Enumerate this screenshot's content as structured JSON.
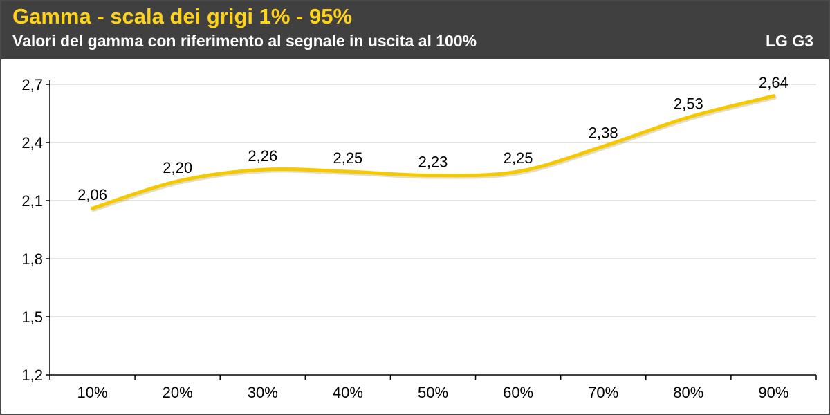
{
  "header": {
    "title": "Gamma - scala dei grigi 1% - 95%",
    "subtitle": "Valori del gamma con riferimento al segnale in uscita al 100%",
    "device": "LG G3"
  },
  "colors": {
    "header_bg": "#404040",
    "title": "#ffd21a",
    "line": "#f5c800",
    "grid": "#c8c8c8"
  },
  "chart_data": {
    "type": "line",
    "title": "Gamma - scala dei grigi 1% - 95%",
    "subtitle": "Valori del gamma con riferimento al segnale in uscita al 100%",
    "categories": [
      "10%",
      "20%",
      "30%",
      "40%",
      "50%",
      "60%",
      "70%",
      "80%",
      "90%"
    ],
    "series": [
      {
        "name": "LG G3",
        "values": [
          2.06,
          2.2,
          2.26,
          2.25,
          2.23,
          2.25,
          2.38,
          2.53,
          2.64
        ]
      }
    ],
    "data_labels": [
      "2,06",
      "2,20",
      "2,26",
      "2,25",
      "2,23",
      "2,25",
      "2,38",
      "2,53",
      "2,64"
    ],
    "y_ticks": [
      1.2,
      1.5,
      1.8,
      2.1,
      2.4,
      2.7
    ],
    "y_tick_labels": [
      "1,2",
      "1,5",
      "1,8",
      "2,1",
      "2,4",
      "2,7"
    ],
    "ylim": [
      1.2,
      2.7
    ],
    "grid": true,
    "smooth": true,
    "legend": "none"
  }
}
